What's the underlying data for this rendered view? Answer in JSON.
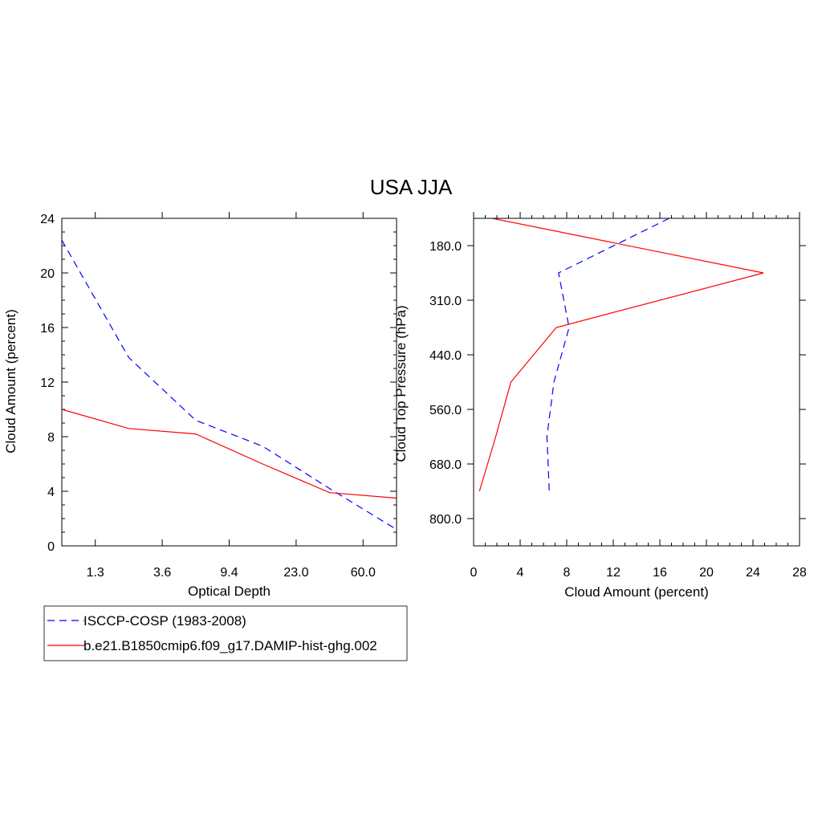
{
  "title": "USA JJA",
  "chart_data": [
    {
      "type": "line",
      "xlabel": "Optical Depth",
      "ylabel": "Cloud Amount (percent)",
      "x_tick_labels": [
        "1.3",
        "3.6",
        "9.4",
        "23.0",
        "60.0"
      ],
      "y_tick_labels": [
        "0",
        "4",
        "8",
        "12",
        "16",
        "20",
        "24"
      ],
      "ylim": [
        0,
        24
      ],
      "x_bins": [
        1,
        2,
        3,
        4,
        5,
        6
      ],
      "series": [
        {
          "name": "ISCCP-COSP (1983-2008)",
          "color": "#0000ff",
          "style": "dashed",
          "values": [
            22.4,
            13.8,
            9.2,
            7.3,
            4.2,
            1.2
          ]
        },
        {
          "name": "b.e21.B1850cmip6.f09_g17.DAMIP-hist-ghg.002",
          "color": "#ff0000",
          "style": "solid",
          "values": [
            10.0,
            8.6,
            8.2,
            6.0,
            3.9,
            3.5
          ]
        }
      ]
    },
    {
      "type": "line",
      "xlabel": "Cloud Amount (percent)",
      "ylabel": "Cloud Top Pressure (hPa)",
      "x_tick_labels": [
        "0",
        "4",
        "8",
        "12",
        "16",
        "20",
        "24",
        "28"
      ],
      "y_tick_labels": [
        "180.0",
        "310.0",
        "440.0",
        "560.0",
        "680.0",
        "800.0"
      ],
      "xlim": [
        0,
        28
      ],
      "pressure_levels": [
        1,
        2,
        3,
        4,
        5,
        6,
        7
      ],
      "series": [
        {
          "name": "ISCCP-COSP (1983-2008)",
          "color": "#0000ff",
          "style": "dashed",
          "values": [
            16.8,
            7.3,
            8.2,
            6.9,
            6.3,
            6.5
          ]
        },
        {
          "name": "b.e21.B1850cmip6.f09_g17.DAMIP-hist-ghg.002",
          "color": "#ff0000",
          "style": "solid",
          "values": [
            1.6,
            24.9,
            7.1,
            3.2,
            1.9,
            0.5
          ]
        }
      ]
    }
  ],
  "legend": [
    {
      "label": "ISCCP-COSP (1983-2008)",
      "color": "#0000ff",
      "style": "dashed"
    },
    {
      "label": "b.e21.B1850cmip6.f09_g17.DAMIP-hist-ghg.002",
      "color": "#ff0000",
      "style": "solid"
    }
  ]
}
